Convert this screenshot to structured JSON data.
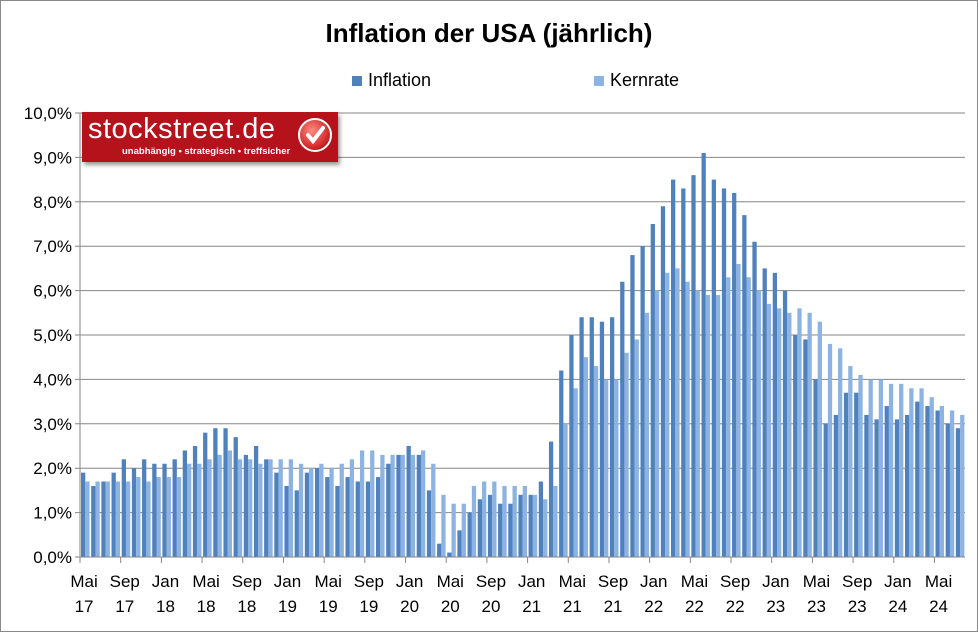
{
  "chart_data": {
    "type": "bar",
    "title": "Inflation der USA (jährlich)",
    "xlabel": "",
    "ylabel": "",
    "ylim": [
      0,
      10
    ],
    "yticks": [
      "0,0%",
      "1,0%",
      "2,0%",
      "3,0%",
      "4,0%",
      "5,0%",
      "6,0%",
      "7,0%",
      "8,0%",
      "9,0%",
      "10,0%"
    ],
    "grid": true,
    "legend_placement": "top",
    "colors": {
      "Inflation": "#4f81bd",
      "Kernrate": "#8db3e2"
    },
    "xtick_labels": [
      [
        "Mai",
        "17"
      ],
      [
        "Sep",
        "17"
      ],
      [
        "Jan",
        "18"
      ],
      [
        "Mai",
        "18"
      ],
      [
        "Sep",
        "18"
      ],
      [
        "Jan",
        "19"
      ],
      [
        "Mai",
        "19"
      ],
      [
        "Sep",
        "19"
      ],
      [
        "Jan",
        "20"
      ],
      [
        "Mai",
        "20"
      ],
      [
        "Sep",
        "20"
      ],
      [
        "Jan",
        "21"
      ],
      [
        "Mai",
        "21"
      ],
      [
        "Sep",
        "21"
      ],
      [
        "Jan",
        "22"
      ],
      [
        "Mai",
        "22"
      ],
      [
        "Sep",
        "22"
      ],
      [
        "Jan",
        "23"
      ],
      [
        "Mai",
        "23"
      ],
      [
        "Sep",
        "23"
      ],
      [
        "Jan",
        "24"
      ],
      [
        "Mai",
        "24"
      ]
    ],
    "categories": [
      "2017-05",
      "2017-06",
      "2017-07",
      "2017-08",
      "2017-09",
      "2017-10",
      "2017-11",
      "2017-12",
      "2018-01",
      "2018-02",
      "2018-03",
      "2018-04",
      "2018-05",
      "2018-06",
      "2018-07",
      "2018-08",
      "2018-09",
      "2018-10",
      "2018-11",
      "2018-12",
      "2019-01",
      "2019-02",
      "2019-03",
      "2019-04",
      "2019-05",
      "2019-06",
      "2019-07",
      "2019-08",
      "2019-09",
      "2019-10",
      "2019-11",
      "2019-12",
      "2020-01",
      "2020-02",
      "2020-03",
      "2020-04",
      "2020-05",
      "2020-06",
      "2020-07",
      "2020-08",
      "2020-09",
      "2020-10",
      "2020-11",
      "2020-12",
      "2021-01",
      "2021-02",
      "2021-03",
      "2021-04",
      "2021-05",
      "2021-06",
      "2021-07",
      "2021-08",
      "2021-09",
      "2021-10",
      "2021-11",
      "2021-12",
      "2022-01",
      "2022-02",
      "2022-03",
      "2022-04",
      "2022-05",
      "2022-06",
      "2022-07",
      "2022-08",
      "2022-09",
      "2022-10",
      "2022-11",
      "2022-12",
      "2023-01",
      "2023-02",
      "2023-03",
      "2023-04",
      "2023-05",
      "2023-06",
      "2023-07",
      "2023-08",
      "2023-09",
      "2023-10",
      "2023-11",
      "2023-12",
      "2024-01",
      "2024-02",
      "2024-03",
      "2024-04",
      "2024-05",
      "2024-06",
      "2024-07"
    ],
    "series": [
      {
        "name": "Inflation",
        "values": [
          1.9,
          1.6,
          1.7,
          1.9,
          2.2,
          2.0,
          2.2,
          2.1,
          2.1,
          2.2,
          2.4,
          2.5,
          2.8,
          2.9,
          2.9,
          2.7,
          2.3,
          2.5,
          2.2,
          1.9,
          1.6,
          1.5,
          1.9,
          2.0,
          1.8,
          1.6,
          1.8,
          1.7,
          1.7,
          1.8,
          2.1,
          2.3,
          2.5,
          2.3,
          1.5,
          0.3,
          0.1,
          0.6,
          1.0,
          1.3,
          1.4,
          1.2,
          1.2,
          1.4,
          1.4,
          1.7,
          2.6,
          4.2,
          5.0,
          5.4,
          5.4,
          5.3,
          5.4,
          6.2,
          6.8,
          7.0,
          7.5,
          7.9,
          8.5,
          8.3,
          8.6,
          9.1,
          8.5,
          8.3,
          8.2,
          7.7,
          7.1,
          6.5,
          6.4,
          6.0,
          5.0,
          4.9,
          4.0,
          3.0,
          3.2,
          3.7,
          3.7,
          3.2,
          3.1,
          3.4,
          3.1,
          3.2,
          3.5,
          3.4,
          3.3,
          3.0,
          2.9
        ]
      },
      {
        "name": "Kernrate",
        "values": [
          1.7,
          1.7,
          1.7,
          1.7,
          1.7,
          1.8,
          1.7,
          1.8,
          1.8,
          1.8,
          2.1,
          2.1,
          2.2,
          2.3,
          2.4,
          2.2,
          2.2,
          2.1,
          2.2,
          2.2,
          2.2,
          2.1,
          2.0,
          2.1,
          2.0,
          2.1,
          2.2,
          2.4,
          2.4,
          2.3,
          2.3,
          2.3,
          2.3,
          2.4,
          2.1,
          1.4,
          1.2,
          1.2,
          1.6,
          1.7,
          1.7,
          1.6,
          1.6,
          1.6,
          1.4,
          1.3,
          1.6,
          3.0,
          3.8,
          4.5,
          4.3,
          4.0,
          4.0,
          4.6,
          4.9,
          5.5,
          6.0,
          6.4,
          6.5,
          6.2,
          6.0,
          5.9,
          5.9,
          6.3,
          6.6,
          6.3,
          6.0,
          5.7,
          5.6,
          5.5,
          5.6,
          5.5,
          5.3,
          4.8,
          4.7,
          4.3,
          4.1,
          4.0,
          4.0,
          3.9,
          3.9,
          3.8,
          3.8,
          3.6,
          3.4,
          3.3,
          3.2
        ]
      }
    ]
  },
  "logo": {
    "name": "stockstreet.de",
    "tagline": "unabhängig • strategisch • treffsicher"
  }
}
